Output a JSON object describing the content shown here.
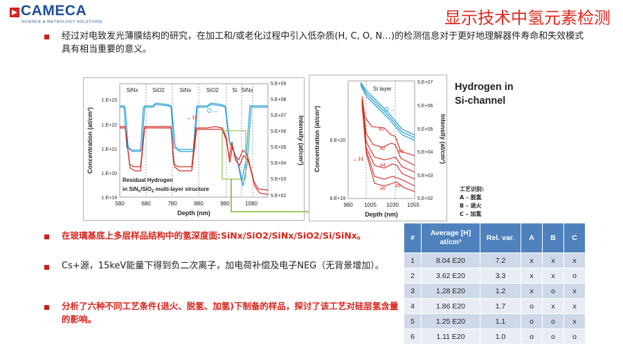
{
  "header": {
    "logo_text": "CAMECA",
    "logo_sub": "SCIENCE & METROLOGY SOLUTIONS",
    "title": "显示技术中氢元素检测",
    "brand_red": "#e0281f",
    "brand_blue": "#1a4f9a"
  },
  "bullets": [
    {
      "text": "经过对电致发光薄膜结构的研究，在加工和/或老化过程中引入低杂质(H, C, O, N…)的检测信息对于更好地理解器件寿命和失效模式具有相当重要的意义。",
      "color": "#222222"
    },
    {
      "text": "在玻璃基底上多层样品结构中的氢深度面:SiNx/SiO2/SiNx/SiO2/Si/SiNx。",
      "color": "#d8241c"
    },
    {
      "text": "Cs+源，15keV能量下得到负二次离子，加电荷补偿及电子NEG（无背景增加）。",
      "color": "#222222"
    },
    {
      "text": "分析了六种不同工艺条件(退火、脱氢、加氢)下制备的样品，探讨了该工艺对硅层氢含量的影响。",
      "color": "#d8241c"
    }
  ],
  "right_label": {
    "line1": "Hydrogen in",
    "line2": "Si-channel"
  },
  "process_legend": {
    "title": "工艺识别:",
    "items": [
      "A – 脱氢",
      "B – 退火",
      "C – 加氢"
    ]
  },
  "chart_data": [
    {
      "type": "line",
      "title": "",
      "inset_label_1": "Residual Hydrogen",
      "inset_label_2_pre": "in SiN",
      "inset_label_2_sub1": "x",
      "inset_label_2_mid": "/SiO",
      "inset_label_2_sub2": "2",
      "inset_label_2_post": " multi-layer structure",
      "xlabel": "Depth (nm)",
      "ylabel_left": "Concentration (at/cm³)",
      "ylabel_right": "Intensity (at/cm²)",
      "x_ticks": [
        "580",
        "680",
        "780",
        "880",
        "980",
        "1080"
      ],
      "y_left_ticks": [
        "1.E+23",
        "1.E+22",
        "1.E+21",
        "1.E+20",
        "1.E+19"
      ],
      "y_right_ticks": [
        "5.E+09",
        "5.E+08",
        "5.E+07",
        "5.E+06",
        "5.E+05",
        "5.E+04",
        "5.E+03",
        "5.E+02"
      ],
      "layers": [
        "SiNx",
        "SiO2",
        "SiNx",
        "SiO2",
        "Si",
        "SiNx"
      ],
      "series": [
        {
          "name": "H",
          "label": "←H",
          "color": "#d42a20"
        },
        {
          "name": "O",
          "label": "O→",
          "color": "#2aa0d8"
        }
      ]
    },
    {
      "type": "line",
      "title": "",
      "region_label": "Si layer",
      "xlabel": "Depth (nm)",
      "ylabel_left": "Concentration (at/cm³)",
      "ylabel_right": "Intensity (at/cm²)",
      "x_ticks": [
        "980",
        "1005",
        "1030",
        "1055"
      ],
      "y_left_ticks": [
        "6.E+20",
        "6.E+19"
      ],
      "y_right_ticks": [
        "5.E+07",
        "5.E+06",
        "5.E+05",
        "5.E+04",
        "5.E+03",
        "5.E+02"
      ],
      "series_labels": [
        "#1",
        "#2",
        "#3",
        "#4",
        "#5",
        "#6"
      ],
      "h_label": "←H",
      "o_label": "O→"
    },
    {
      "type": "table",
      "columns": [
        "#",
        "Average [H] at/cm³",
        "Rel. var.",
        "A",
        "B",
        "C"
      ],
      "rows": [
        [
          "1",
          "8.04 E20",
          "7.2",
          "x",
          "x",
          "x"
        ],
        [
          "2",
          "3.62 E20",
          "3.3",
          "x",
          "x",
          "o"
        ],
        [
          "3",
          "1.28 E20",
          "1.2",
          "x",
          "o",
          "x"
        ],
        [
          "4",
          "1.86 E20",
          "1.7",
          "o",
          "x",
          "x"
        ],
        [
          "5",
          "1.25 E20",
          "1.1",
          "o",
          "o",
          "x"
        ],
        [
          "6",
          "1.11 E20",
          "1.0",
          "o",
          "o",
          "o"
        ]
      ]
    }
  ]
}
